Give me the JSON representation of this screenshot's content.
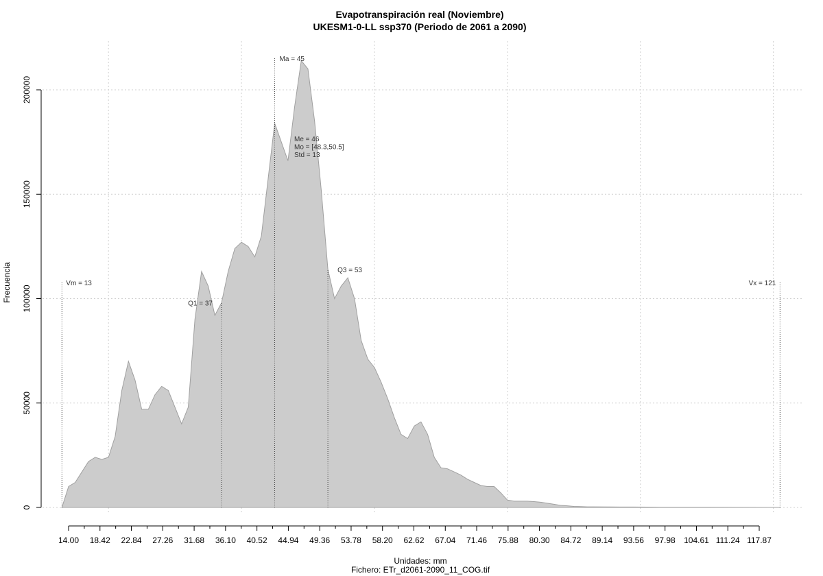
{
  "chart_data": {
    "type": "area",
    "title": "Evapotranspiración real (Noviembre)",
    "subtitle": "UKESM1-0-LL ssp370 (Periodo de 2061 a 2090)",
    "xlabel": "Unidades: mm",
    "ylabel": "Frecuencia",
    "file_caption": "Fichero: ETr_d2061-2090_11_COG.tif",
    "xlim": [
      13,
      121
    ],
    "ylim": [
      0,
      200000
    ],
    "x_ticks": [
      "14.00",
      "18.42",
      "22.84",
      "27.26",
      "31.68",
      "36.10",
      "40.52",
      "44.94",
      "49.36",
      "53.78",
      "58.20",
      "62.62",
      "67.04",
      "71.46",
      "75.88",
      "80.30",
      "84.72",
      "89.14",
      "93.56",
      "97.98",
      "104.61",
      "111.24",
      "117.87"
    ],
    "x_grid": [
      20,
      40,
      60,
      80,
      100,
      120
    ],
    "y_ticks": [
      0,
      50000,
      100000,
      150000,
      200000
    ],
    "y_tick_labels": [
      "0",
      "50000",
      "100000",
      "150000",
      "200000"
    ],
    "grid": true,
    "fill_color": "#cccccc",
    "line_color": "#a0a0a0",
    "x": [
      13,
      14,
      15,
      16,
      17,
      18,
      19,
      20,
      21,
      22,
      23,
      24,
      25,
      26,
      27,
      28,
      29,
      30,
      31,
      32,
      33,
      34,
      35,
      36,
      37,
      38,
      39,
      40,
      41,
      42,
      43,
      44,
      45,
      46,
      47,
      48,
      49,
      50,
      51,
      52,
      53,
      54,
      55,
      56,
      57,
      58,
      59,
      60,
      61,
      62,
      63,
      64,
      65,
      66,
      67,
      68,
      69,
      70,
      71,
      72,
      73,
      74,
      75,
      76,
      77,
      78,
      79,
      80,
      81,
      82,
      83,
      84,
      85,
      86,
      87,
      88,
      89,
      90,
      91,
      92,
      93,
      95,
      97,
      99,
      101,
      103,
      105,
      110,
      115,
      120,
      121
    ],
    "y": [
      0,
      10000,
      12000,
      17000,
      22000,
      24000,
      23000,
      24000,
      34000,
      56000,
      70000,
      61000,
      47000,
      47000,
      54000,
      58000,
      56000,
      48000,
      40000,
      48000,
      90000,
      113000,
      106000,
      92000,
      98000,
      113000,
      124000,
      127000,
      125000,
      120000,
      130000,
      157000,
      184000,
      175000,
      166000,
      192000,
      214000,
      210000,
      185000,
      152000,
      114000,
      100000,
      106000,
      110000,
      100000,
      80000,
      71000,
      67000,
      60000,
      52000,
      43000,
      35000,
      33000,
      39000,
      41000,
      35000,
      24000,
      19000,
      18500,
      17000,
      15500,
      13500,
      12000,
      10500,
      10000,
      10000,
      7000,
      3500,
      3000,
      3000,
      3000,
      2800,
      2500,
      2000,
      1500,
      1000,
      800,
      500,
      400,
      300,
      300,
      250,
      200,
      200,
      150,
      100,
      100,
      50,
      20,
      0,
      0
    ],
    "vlines": [
      {
        "x": 13,
        "label": "Vm = 13"
      },
      {
        "x": 37,
        "label": "Q1 = 37"
      },
      {
        "x": 45,
        "label": "Ma = 45"
      },
      {
        "x": 53,
        "label": "Q3 = 53"
      },
      {
        "x": 121,
        "label": "Vx = 121"
      }
    ],
    "stats_annotation": [
      "Me = 46",
      "Mo = [48.3,50.5]",
      "Std = 13"
    ]
  }
}
